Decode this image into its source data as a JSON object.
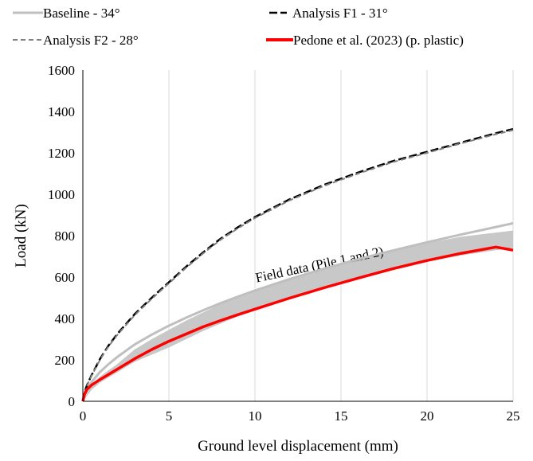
{
  "chart_data": {
    "type": "line",
    "xlabel": "Ground level displacement (mm)",
    "ylabel": "Load (kN)",
    "xlim": [
      0,
      25
    ],
    "ylim": [
      0,
      1600
    ],
    "xticks": [
      0,
      5,
      10,
      15,
      20,
      25
    ],
    "yticks": [
      0,
      200,
      400,
      600,
      800,
      1000,
      1200,
      1400,
      1600
    ],
    "grid": "vertical",
    "legend_placement": "top",
    "series": [
      {
        "name": "Baseline - 34°",
        "color": "#bfbfbf",
        "style": "solid",
        "x": [
          0,
          0.1,
          0.25,
          0.5,
          1,
          1.5,
          2,
          3,
          4,
          5,
          6,
          7,
          8,
          9,
          10,
          12,
          14,
          16,
          18,
          20,
          22,
          24,
          25
        ],
        "y": [
          0,
          30,
          58,
          92,
          142,
          180,
          214,
          274,
          322,
          365,
          404,
          440,
          474,
          505,
          535,
          590,
          640,
          686,
          728,
          768,
          806,
          842,
          860
        ]
      },
      {
        "name": "Analysis F1 - 31°",
        "color": "#000000",
        "style": "dash",
        "x": [
          0,
          0.1,
          0.25,
          0.5,
          1,
          1.5,
          2,
          3,
          4,
          5,
          6,
          7,
          8,
          9,
          10,
          12,
          14,
          16,
          18,
          20,
          22,
          24,
          25
        ],
        "y": [
          0,
          45,
          80,
          125,
          205,
          270,
          325,
          420,
          500,
          575,
          650,
          720,
          785,
          840,
          890,
          975,
          1045,
          1105,
          1160,
          1205,
          1250,
          1295,
          1315
        ]
      },
      {
        "name": "Analysis F2 - 28°",
        "color": "#808080",
        "style": "dash-short",
        "x": [
          0,
          0.1,
          0.25,
          0.5,
          1,
          1.5,
          2,
          3,
          4,
          5,
          6,
          7,
          8,
          9,
          10,
          12,
          14,
          16,
          18,
          20,
          22,
          24,
          25
        ],
        "y": [
          0,
          44,
          78,
          122,
          201,
          266,
          320,
          415,
          495,
          570,
          645,
          715,
          780,
          835,
          885,
          970,
          1040,
          1100,
          1155,
          1200,
          1246,
          1290,
          1310
        ]
      },
      {
        "name": "Pedone et al. (2023) (p. plastic)",
        "color": "#ff0000",
        "style": "solid",
        "x": [
          0,
          0.1,
          0.25,
          0.5,
          1,
          1.5,
          2,
          3,
          4,
          5,
          6,
          7,
          8,
          9,
          10,
          12,
          14,
          16,
          18,
          20,
          22,
          24,
          25
        ],
        "y": [
          0,
          35,
          58,
          78,
          105,
          130,
          155,
          205,
          250,
          290,
          325,
          360,
          390,
          418,
          445,
          498,
          548,
          595,
          640,
          680,
          715,
          745,
          730
        ]
      }
    ],
    "band": {
      "label": "Field data (Pile 1 and 2)",
      "color": "#c8c8c8",
      "x": [
        0,
        0.5,
        1,
        2,
        3,
        4,
        5,
        6,
        7,
        8,
        9,
        10,
        12,
        14,
        16,
        18,
        20,
        22,
        24,
        25
      ],
      "upper": [
        0,
        80,
        120,
        180,
        250,
        300,
        345,
        390,
        430,
        470,
        505,
        535,
        590,
        640,
        690,
        730,
        765,
        795,
        815,
        825
      ],
      "lower": [
        0,
        55,
        90,
        140,
        190,
        225,
        260,
        300,
        340,
        375,
        410,
        440,
        495,
        545,
        595,
        640,
        675,
        705,
        730,
        740
      ]
    }
  }
}
